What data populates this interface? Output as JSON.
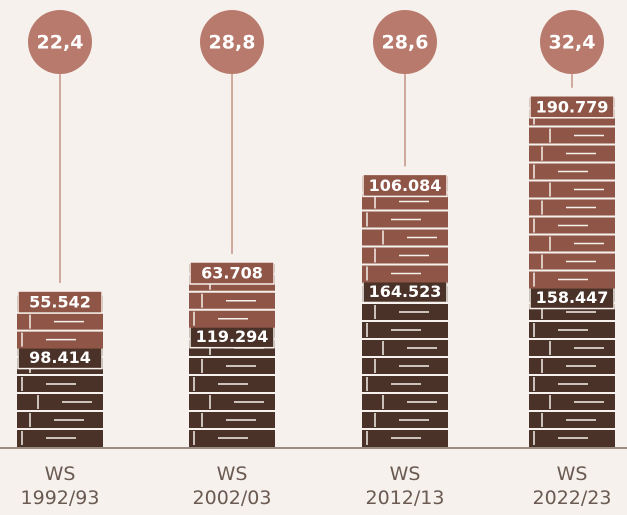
{
  "chart_data": {
    "type": "book-stacks",
    "categories": [
      "WS\n1992/93",
      "WS\n2002/03",
      "WS\n2012/13",
      "WS\n2022/23"
    ],
    "series": [
      {
        "color": "#4a3229",
        "values": [
          98414,
          119294,
          164523,
          158447
        ],
        "value_labels": [
          "98.414",
          "119.294",
          "164.523",
          "158.447"
        ]
      },
      {
        "color": "#8f5647",
        "values": [
          55542,
          63708,
          106084,
          190779
        ],
        "value_labels": [
          "55.542",
          "63.708",
          "106.084",
          "190.779"
        ]
      }
    ],
    "bubbles": {
      "color": "#b87a6c",
      "values": [
        22.4,
        28.8,
        28.6,
        32.4
      ],
      "value_labels": [
        "22,4",
        "28,8",
        "28,6",
        "32,4"
      ]
    }
  }
}
